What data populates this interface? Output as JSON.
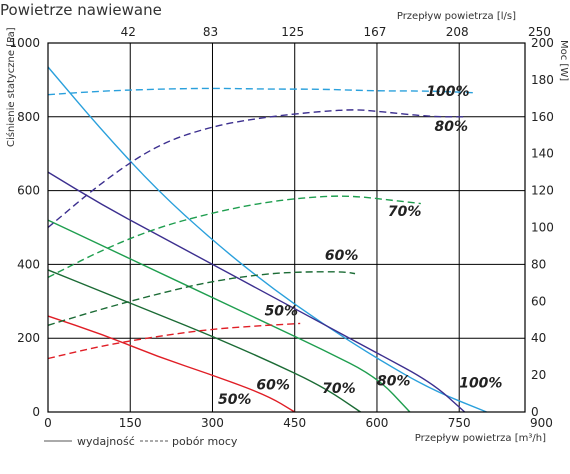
{
  "chart_data": {
    "type": "line",
    "title": "Powietrze nawiewane",
    "x_bottom": {
      "label": "Przepływ powietrza [m³/h]",
      "ticks": [
        "0",
        "150",
        "300",
        "450",
        "600",
        "750",
        "900"
      ],
      "range": [
        0,
        870
      ]
    },
    "x_top": {
      "label": "Przepływ powietrza [l/s]",
      "ticks": [
        "42",
        "83",
        "125",
        "167",
        "208",
        "250"
      ]
    },
    "y_left": {
      "label": "Ciśnienie statyczne [Pa]",
      "ticks": [
        "0",
        "200",
        "400",
        "600",
        "800",
        "1000"
      ],
      "range": [
        0,
        1000
      ]
    },
    "y_right": {
      "label": "Moc [W]",
      "ticks": [
        "0",
        "20",
        "40",
        "60",
        "80",
        "100",
        "120",
        "140",
        "160",
        "180",
        "200"
      ],
      "range": [
        0,
        200
      ]
    },
    "grid": true,
    "legend": {
      "solid": "wydajność",
      "dashed": "pobór mocy",
      "placement": "bottom-left"
    },
    "series": [
      {
        "name": "100%",
        "kind": "wydajność",
        "color": "#2aa0dc",
        "points": [
          [
            0,
            935
          ],
          [
            100,
            760
          ],
          [
            200,
            600
          ],
          [
            300,
            465
          ],
          [
            400,
            345
          ],
          [
            500,
            240
          ],
          [
            600,
            145
          ],
          [
            700,
            60
          ],
          [
            800,
            -5
          ]
        ]
      },
      {
        "name": "80%",
        "kind": "wydajność",
        "color": "#3c2f8f",
        "points": [
          [
            0,
            650
          ],
          [
            100,
            560
          ],
          [
            200,
            480
          ],
          [
            300,
            400
          ],
          [
            400,
            320
          ],
          [
            500,
            240
          ],
          [
            600,
            160
          ],
          [
            700,
            80
          ],
          [
            760,
            -5
          ]
        ]
      },
      {
        "name": "70%",
        "kind": "wydajność",
        "color": "#1f9e4f",
        "points": [
          [
            0,
            520
          ],
          [
            100,
            450
          ],
          [
            200,
            380
          ],
          [
            300,
            310
          ],
          [
            400,
            240
          ],
          [
            500,
            170
          ],
          [
            600,
            95
          ],
          [
            660,
            -5
          ]
        ]
      },
      {
        "name": "60%",
        "kind": "wydajność",
        "color": "#1b6b35",
        "points": [
          [
            0,
            385
          ],
          [
            100,
            325
          ],
          [
            200,
            265
          ],
          [
            300,
            205
          ],
          [
            400,
            140
          ],
          [
            500,
            70
          ],
          [
            570,
            -5
          ]
        ]
      },
      {
        "name": "50%",
        "kind": "wydajność",
        "color": "#e01e26",
        "points": [
          [
            0,
            260
          ],
          [
            100,
            210
          ],
          [
            200,
            150
          ],
          [
            300,
            100
          ],
          [
            400,
            45
          ],
          [
            450,
            -5
          ]
        ]
      },
      {
        "name": "100%",
        "kind": "pobór mocy",
        "color": "#2aa0dc",
        "points": [
          [
            0,
            172
          ],
          [
            100,
            174
          ],
          [
            200,
            175
          ],
          [
            300,
            175.5
          ],
          [
            400,
            175
          ],
          [
            500,
            175
          ],
          [
            600,
            174
          ],
          [
            700,
            174
          ],
          [
            780,
            173
          ]
        ]
      },
      {
        "name": "80%",
        "kind": "pobór mocy",
        "color": "#3c2f8f",
        "points": [
          [
            0,
            100
          ],
          [
            100,
            125
          ],
          [
            200,
            145
          ],
          [
            300,
            155
          ],
          [
            400,
            160
          ],
          [
            500,
            163
          ],
          [
            560,
            164
          ],
          [
            600,
            163
          ],
          [
            700,
            160
          ],
          [
            760,
            160
          ]
        ]
      },
      {
        "name": "70%",
        "kind": "pobór mocy",
        "color": "#1f9e4f",
        "points": [
          [
            0,
            73
          ],
          [
            100,
            88
          ],
          [
            200,
            100
          ],
          [
            300,
            108
          ],
          [
            400,
            114
          ],
          [
            500,
            117
          ],
          [
            560,
            117
          ],
          [
            620,
            115
          ],
          [
            680,
            113
          ]
        ]
      },
      {
        "name": "60%",
        "kind": "pobór mocy",
        "color": "#1b6b35",
        "points": [
          [
            0,
            47
          ],
          [
            100,
            56
          ],
          [
            200,
            64
          ],
          [
            300,
            71
          ],
          [
            400,
            75
          ],
          [
            470,
            76
          ],
          [
            540,
            76
          ],
          [
            560,
            75
          ]
        ]
      },
      {
        "name": "50%",
        "kind": "pobór mocy",
        "color": "#e01e26",
        "points": [
          [
            0,
            29
          ],
          [
            100,
            36
          ],
          [
            200,
            41
          ],
          [
            300,
            45
          ],
          [
            400,
            47
          ],
          [
            460,
            48
          ]
        ]
      }
    ],
    "annotations": [
      {
        "text": "100%",
        "x": 690,
        "y": 870
      },
      {
        "text": "80%",
        "x": 705,
        "y": 775
      },
      {
        "text": "70%",
        "x": 620,
        "y": 545
      },
      {
        "text": "60%",
        "x": 505,
        "y": 425
      },
      {
        "text": "50%",
        "x": 395,
        "y": 275
      },
      {
        "text": "100%",
        "x": 750,
        "y": 80
      },
      {
        "text": "80%",
        "x": 600,
        "y": 85
      },
      {
        "text": "70%",
        "x": 500,
        "y": 65
      },
      {
        "text": "60%",
        "x": 380,
        "y": 75
      },
      {
        "text": "50%",
        "x": 310,
        "y": 35
      }
    ]
  }
}
